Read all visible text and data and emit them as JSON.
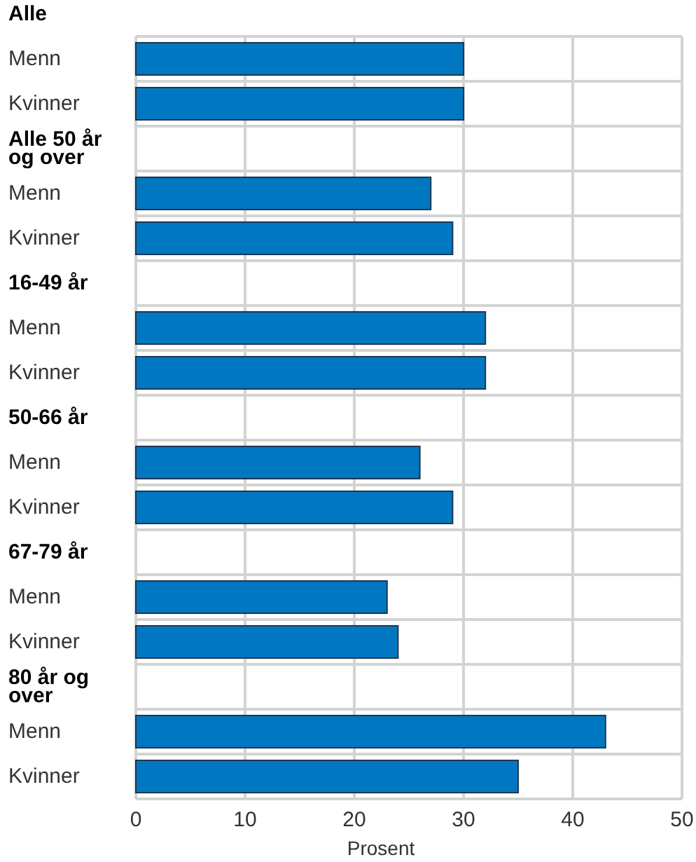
{
  "chart_data": {
    "type": "bar",
    "orientation": "horizontal",
    "xlabel": "Prosent",
    "categories": [
      "Alle",
      "Menn",
      "Kvinner",
      "Alle 50 år og over",
      "Menn",
      "Kvinner",
      "16-49 år",
      "Menn",
      "Kvinner",
      "50-66 år",
      "Menn",
      "Kvinner",
      "67-79 år",
      "Menn",
      "Kvinner",
      "80 år og over",
      "Menn",
      "Kvinner"
    ],
    "values": [
      null,
      30,
      30,
      null,
      27,
      29,
      null,
      32,
      32,
      null,
      26,
      29,
      null,
      23,
      24,
      null,
      43,
      35
    ],
    "color": "#0078c1",
    "xlim": [
      0,
      50
    ],
    "xticks": [
      0,
      10,
      20,
      30,
      40,
      50
    ],
    "grid": true
  }
}
